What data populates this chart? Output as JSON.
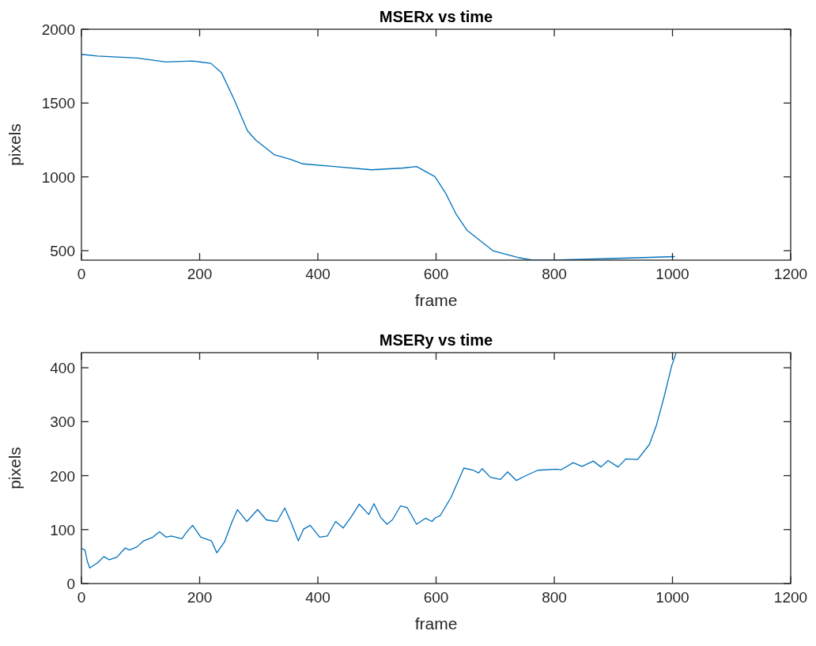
{
  "chart_data": [
    {
      "type": "line",
      "title": "MSERx vs time",
      "xlabel": "frame",
      "ylabel": "pixels",
      "xlim": [
        0,
        1200
      ],
      "xticks": [
        0,
        200,
        400,
        600,
        800,
        1000,
        1200
      ],
      "ylim": [
        436,
        2000
      ],
      "yticks": [
        500,
        1000,
        1500,
        2000
      ],
      "series": [
        {
          "color": "#0072bd",
          "x": [
            0,
            27,
            94,
            143,
            188,
            219,
            237,
            259,
            281,
            295,
            326,
            353,
            375,
            428,
            491,
            544,
            567,
            598,
            616,
            634,
            652,
            696,
            741,
            763,
            799,
            870,
            941,
            1004
          ],
          "values": [
            1830,
            1819,
            1805,
            1778,
            1785,
            1769,
            1706,
            1518,
            1312,
            1249,
            1151,
            1120,
            1088,
            1070,
            1048,
            1060,
            1070,
            1002,
            891,
            747,
            640,
            500,
            452,
            437,
            436,
            444,
            452,
            460
          ]
        }
      ]
    },
    {
      "type": "line",
      "title": "MSERy vs time",
      "xlabel": "frame",
      "ylabel": "pixels",
      "xlim": [
        0,
        1200
      ],
      "xticks": [
        0,
        200,
        400,
        600,
        800,
        1000,
        1200
      ],
      "ylim": [
        0,
        428
      ],
      "yticks": [
        0,
        100,
        200,
        300,
        400
      ],
      "series": [
        {
          "color": "#0072bd",
          "x": [
            0,
            6,
            10,
            14,
            27,
            38,
            47,
            60,
            74,
            81,
            94,
            105,
            121,
            132,
            143,
            152,
            170,
            177,
            188,
            202,
            220,
            229,
            242,
            255,
            264,
            280,
            298,
            313,
            331,
            344,
            354,
            367,
            376,
            387,
            403,
            416,
            430,
            443,
            456,
            470,
            486,
            495,
            506,
            517,
            526,
            540,
            551,
            567,
            582,
            593,
            599,
            607,
            625,
            647,
            663,
            672,
            678,
            692,
            709,
            721,
            736,
            750,
            772,
            803,
            812,
            832,
            847,
            866,
            879,
            891,
            908,
            921,
            941,
            961,
            973,
            986,
            999,
            1006
          ],
          "values": [
            65,
            62,
            41,
            29,
            38,
            50,
            44,
            49,
            66,
            62,
            68,
            79,
            86,
            96,
            86,
            88,
            83,
            94,
            108,
            86,
            79,
            57,
            77,
            115,
            137,
            115,
            137,
            118,
            115,
            140,
            115,
            79,
            101,
            108,
            86,
            88,
            115,
            103,
            123,
            147,
            128,
            148,
            123,
            110,
            118,
            144,
            141,
            110,
            121,
            115,
            122,
            126,
            159,
            214,
            210,
            205,
            213,
            197,
            193,
            207,
            191,
            199,
            210,
            212,
            211,
            224,
            217,
            227,
            216,
            228,
            216,
            231,
            230,
            258,
            294,
            347,
            405,
            427
          ]
        }
      ]
    }
  ]
}
